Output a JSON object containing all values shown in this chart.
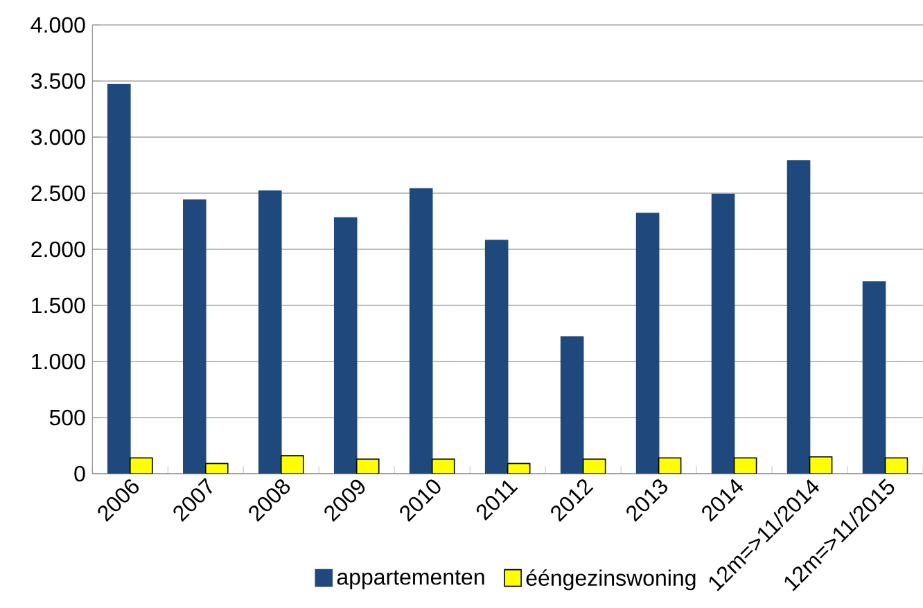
{
  "chart_data": {
    "type": "bar",
    "categories": [
      "2006",
      "2007",
      "2008",
      "2009",
      "2010",
      "2011",
      "2012",
      "2013",
      "2014",
      "12m=>11/2014",
      "12m=>11/2015"
    ],
    "series": [
      {
        "name": "appartementen",
        "color": "#1f497d",
        "values": [
          3470,
          2440,
          2520,
          2280,
          2540,
          2080,
          1220,
          2320,
          2490,
          2790,
          1710
        ]
      },
      {
        "name": "ééngezinswoning",
        "color": "#ffff00",
        "values": [
          140,
          90,
          160,
          130,
          130,
          90,
          130,
          140,
          140,
          150,
          140
        ]
      }
    ],
    "ylim": [
      0,
      4000
    ],
    "yticks": [
      {
        "value": 0,
        "label": "0"
      },
      {
        "value": 500,
        "label": "500"
      },
      {
        "value": 1000,
        "label": "1.000"
      },
      {
        "value": 1500,
        "label": "1.500"
      },
      {
        "value": 2000,
        "label": "2.000"
      },
      {
        "value": 2500,
        "label": "2.500"
      },
      {
        "value": 3000,
        "label": "3.000"
      },
      {
        "value": 3500,
        "label": "3.500"
      },
      {
        "value": 4000,
        "label": "4.000"
      }
    ],
    "grid": "y",
    "legend": "bottom"
  }
}
